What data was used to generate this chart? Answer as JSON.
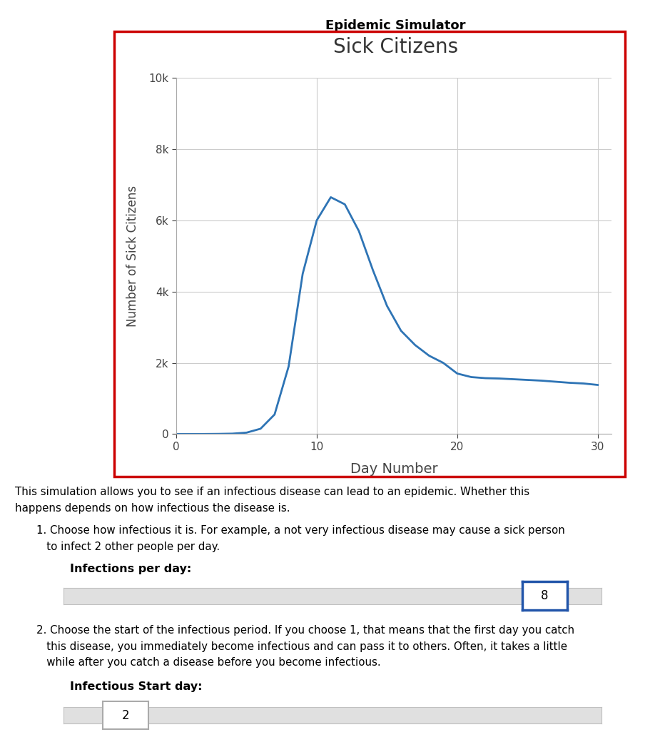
{
  "title_above": "Epidemic Simulator",
  "chart_title": "Sick Citizens",
  "xlabel": "Day Number",
  "ylabel": "Number of Sick Citizens",
  "line_color": "#2E74B5",
  "line_width": 2.0,
  "xlim": [
    0,
    31
  ],
  "ylim": [
    0,
    10000
  ],
  "xticks": [
    0,
    10,
    20,
    30
  ],
  "ytick_labels": [
    "0",
    "2k",
    "4k",
    "6k",
    "8k",
    "10k"
  ],
  "ytick_values": [
    0,
    2000,
    4000,
    6000,
    8000,
    10000
  ],
  "border_color": "#CC0000",
  "background_color": "#ffffff",
  "x_data": [
    0,
    1,
    2,
    3,
    4,
    5,
    6,
    7,
    8,
    9,
    10,
    11,
    12,
    13,
    14,
    15,
    16,
    17,
    18,
    19,
    20,
    21,
    22,
    23,
    24,
    25,
    26,
    27,
    28,
    29,
    30
  ],
  "y_data": [
    0,
    0,
    2,
    5,
    12,
    40,
    150,
    550,
    1900,
    4500,
    6000,
    6650,
    6450,
    5700,
    4600,
    3600,
    2900,
    2500,
    2200,
    2000,
    1700,
    1600,
    1570,
    1560,
    1540,
    1520,
    1500,
    1470,
    1440,
    1420,
    1380
  ],
  "text_body_line1": "This simulation allows you to see if an infectious disease can lead to an epidemic. Whether this",
  "text_body_line2": "happens depends on how infectious the disease is.",
  "item1_line1": "1. Choose how infectious it is. For example, a not very infectious disease may cause a sick person",
  "item1_line2": "   to infect 2 other people per day.",
  "infections_label": "Infections per day:",
  "slider1_value": "8",
  "item2_line1": "2. Choose the start of the infectious period. If you choose 1, that means that the first day you catch",
  "item2_line2": "   this disease, you immediately become infectious and can pass it to others. Often, it takes a little",
  "item2_line3": "   while after you catch a disease before you become infectious.",
  "infectious_start_label": "Infectious Start day:",
  "slider2_value": "2",
  "fig_width": 9.32,
  "fig_height": 10.4,
  "dpi": 100
}
